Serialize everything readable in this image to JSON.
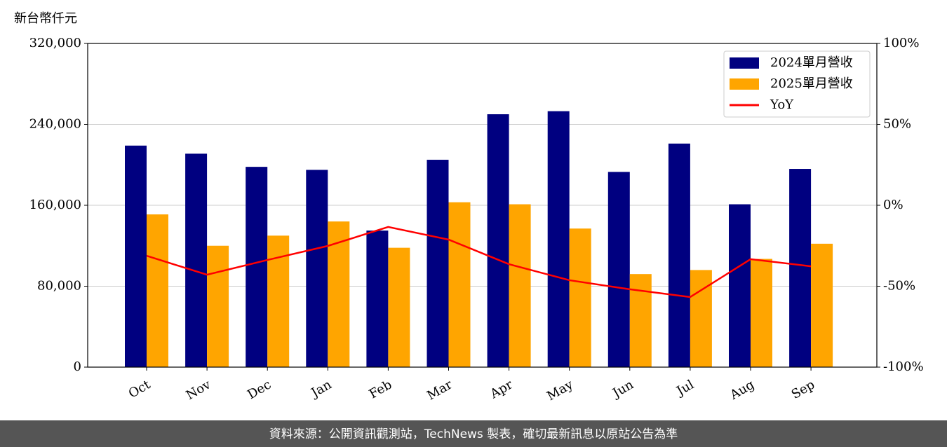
{
  "chart_data": {
    "type": "bar_line",
    "y_label": "新台幣仟元",
    "categories": [
      "Oct",
      "Nov",
      "Dec",
      "Jan",
      "Feb",
      "Mar",
      "Apr",
      "May",
      "Jun",
      "Jul",
      "Aug",
      "Sep"
    ],
    "series": [
      {
        "name": "2024單月營收",
        "color": "#000080",
        "type": "bar",
        "values": [
          219000,
          211000,
          198000,
          195000,
          135000,
          205000,
          250000,
          253000,
          193000,
          221000,
          161000,
          196000
        ]
      },
      {
        "name": "2025單月營收",
        "color": "#ffa500",
        "type": "bar",
        "values": [
          151000,
          120000,
          130000,
          144000,
          118000,
          163000,
          161000,
          137000,
          92000,
          96000,
          107000,
          122000
        ]
      },
      {
        "name": "YoY",
        "color": "#ff0000",
        "type": "line",
        "axis": "y2",
        "values": [
          -31.2,
          -42.9,
          -33.8,
          -25.1,
          -13.4,
          -21.2,
          -36.4,
          -46.3,
          -51.9,
          -56.7,
          -33.3,
          -37.7
        ]
      }
    ],
    "ylim": [
      0,
      320000
    ],
    "yticks": [
      0,
      {
        "value": 80000,
        "label": "80,000"
      },
      {
        "value": 160000,
        "label": "160,000"
      },
      {
        "value": 240000,
        "label": "240,000"
      },
      {
        "value": 320000,
        "label": "320,000"
      }
    ],
    "y2lim": [
      -100,
      100
    ],
    "y2ticks": [
      {
        "value": -100,
        "label": "-100%"
      },
      {
        "value": -50,
        "label": "-50%"
      },
      {
        "value": 0,
        "label": "0%"
      },
      {
        "value": 50,
        "label": "50%"
      },
      {
        "value": 100,
        "label": "100%"
      }
    ],
    "grid": true,
    "legend": "upper right",
    "footer": "資料來源：公開資訊觀測站，TechNews 製表，確切最新訊息以原站公告為準"
  }
}
